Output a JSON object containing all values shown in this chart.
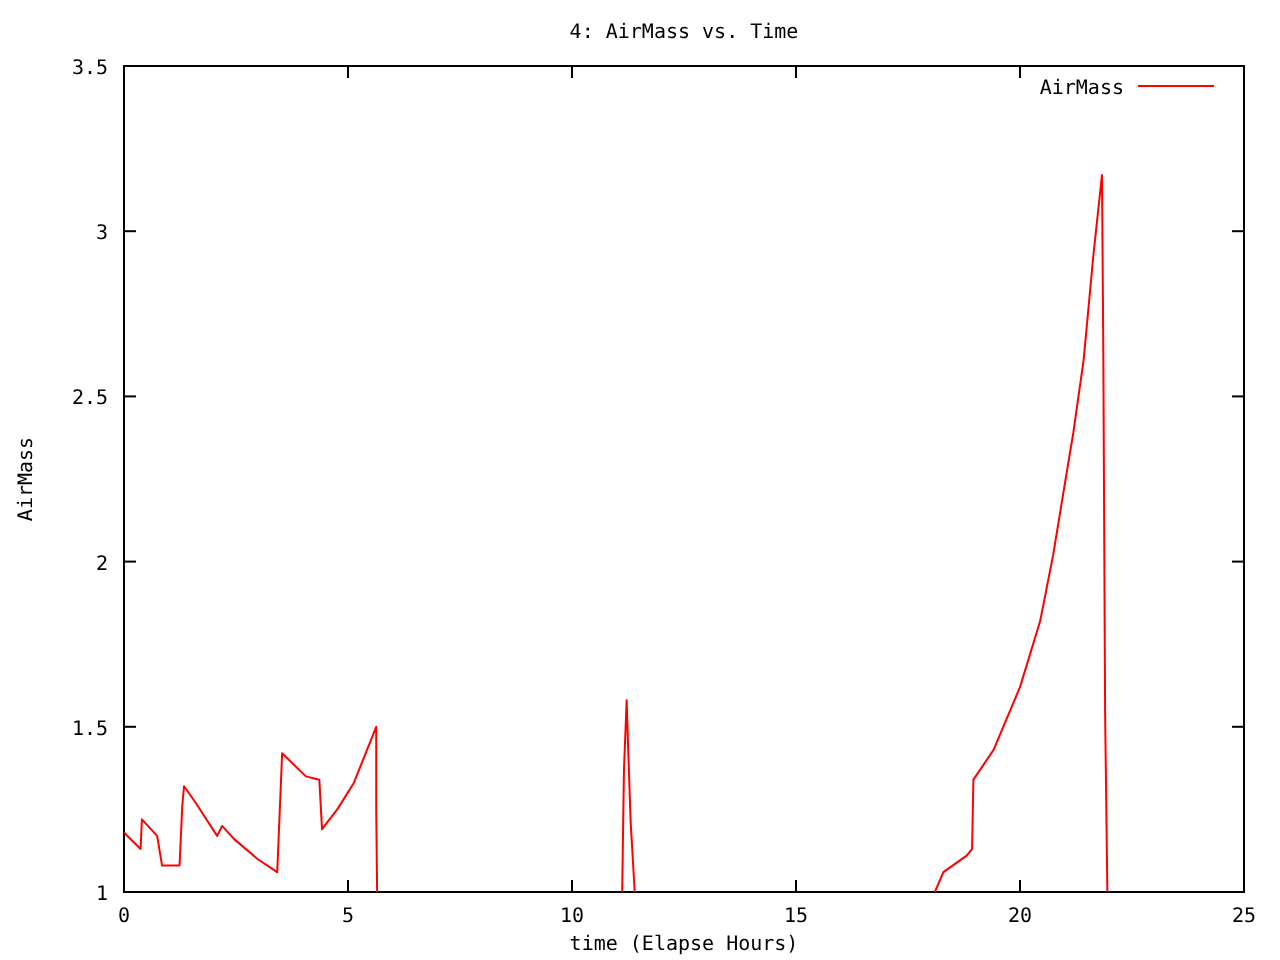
{
  "chart_data": {
    "type": "line",
    "title": "4: AirMass vs. Time",
    "xlabel": "time (Elapse Hours)",
    "ylabel": "AirMass",
    "xlim": [
      0,
      25
    ],
    "xticks": [
      0,
      5,
      10,
      15,
      20,
      25
    ],
    "ylim": [
      1,
      3.5
    ],
    "yticks": [
      1,
      1.5,
      2,
      2.5,
      3,
      3.5
    ],
    "grid": false,
    "legend": "top right",
    "series": [
      {
        "name": "AirMass",
        "color": "#ff0000",
        "x": [
          0,
          0.37,
          0.4,
          0.74,
          0.85,
          1.24,
          1.3,
          1.34,
          1.6,
          1.79,
          2.08,
          2.19,
          2.46,
          2.98,
          3.42,
          3.53,
          4.06,
          4.36,
          4.42,
          4.76,
          5.13,
          5.63,
          5.63,
          5.65,
          8,
          11.12,
          11.16,
          11.22,
          11.25,
          11.31,
          11.4,
          15,
          18.1,
          18.29,
          18.81,
          18.93,
          18.96,
          19.41,
          20.0,
          20.45,
          20.74,
          20.97,
          21.19,
          21.42,
          21.64,
          21.83,
          21.86,
          21.9,
          21.95
        ],
        "values": [
          1.18,
          1.13,
          1.22,
          1.17,
          1.08,
          1.08,
          1.26,
          1.32,
          1.27,
          1.23,
          1.17,
          1.2,
          1.16,
          1.1,
          1.06,
          1.42,
          1.35,
          1.34,
          1.19,
          1.25,
          1.33,
          1.5,
          1.25,
          1.0,
          null,
          1.0,
          1.37,
          1.58,
          1.45,
          1.21,
          1.0,
          null,
          1.0,
          1.06,
          1.11,
          1.13,
          1.34,
          1.43,
          1.62,
          1.82,
          2.02,
          2.21,
          2.39,
          2.61,
          2.93,
          3.17,
          2.63,
          1.54,
          1.0
        ]
      }
    ]
  }
}
